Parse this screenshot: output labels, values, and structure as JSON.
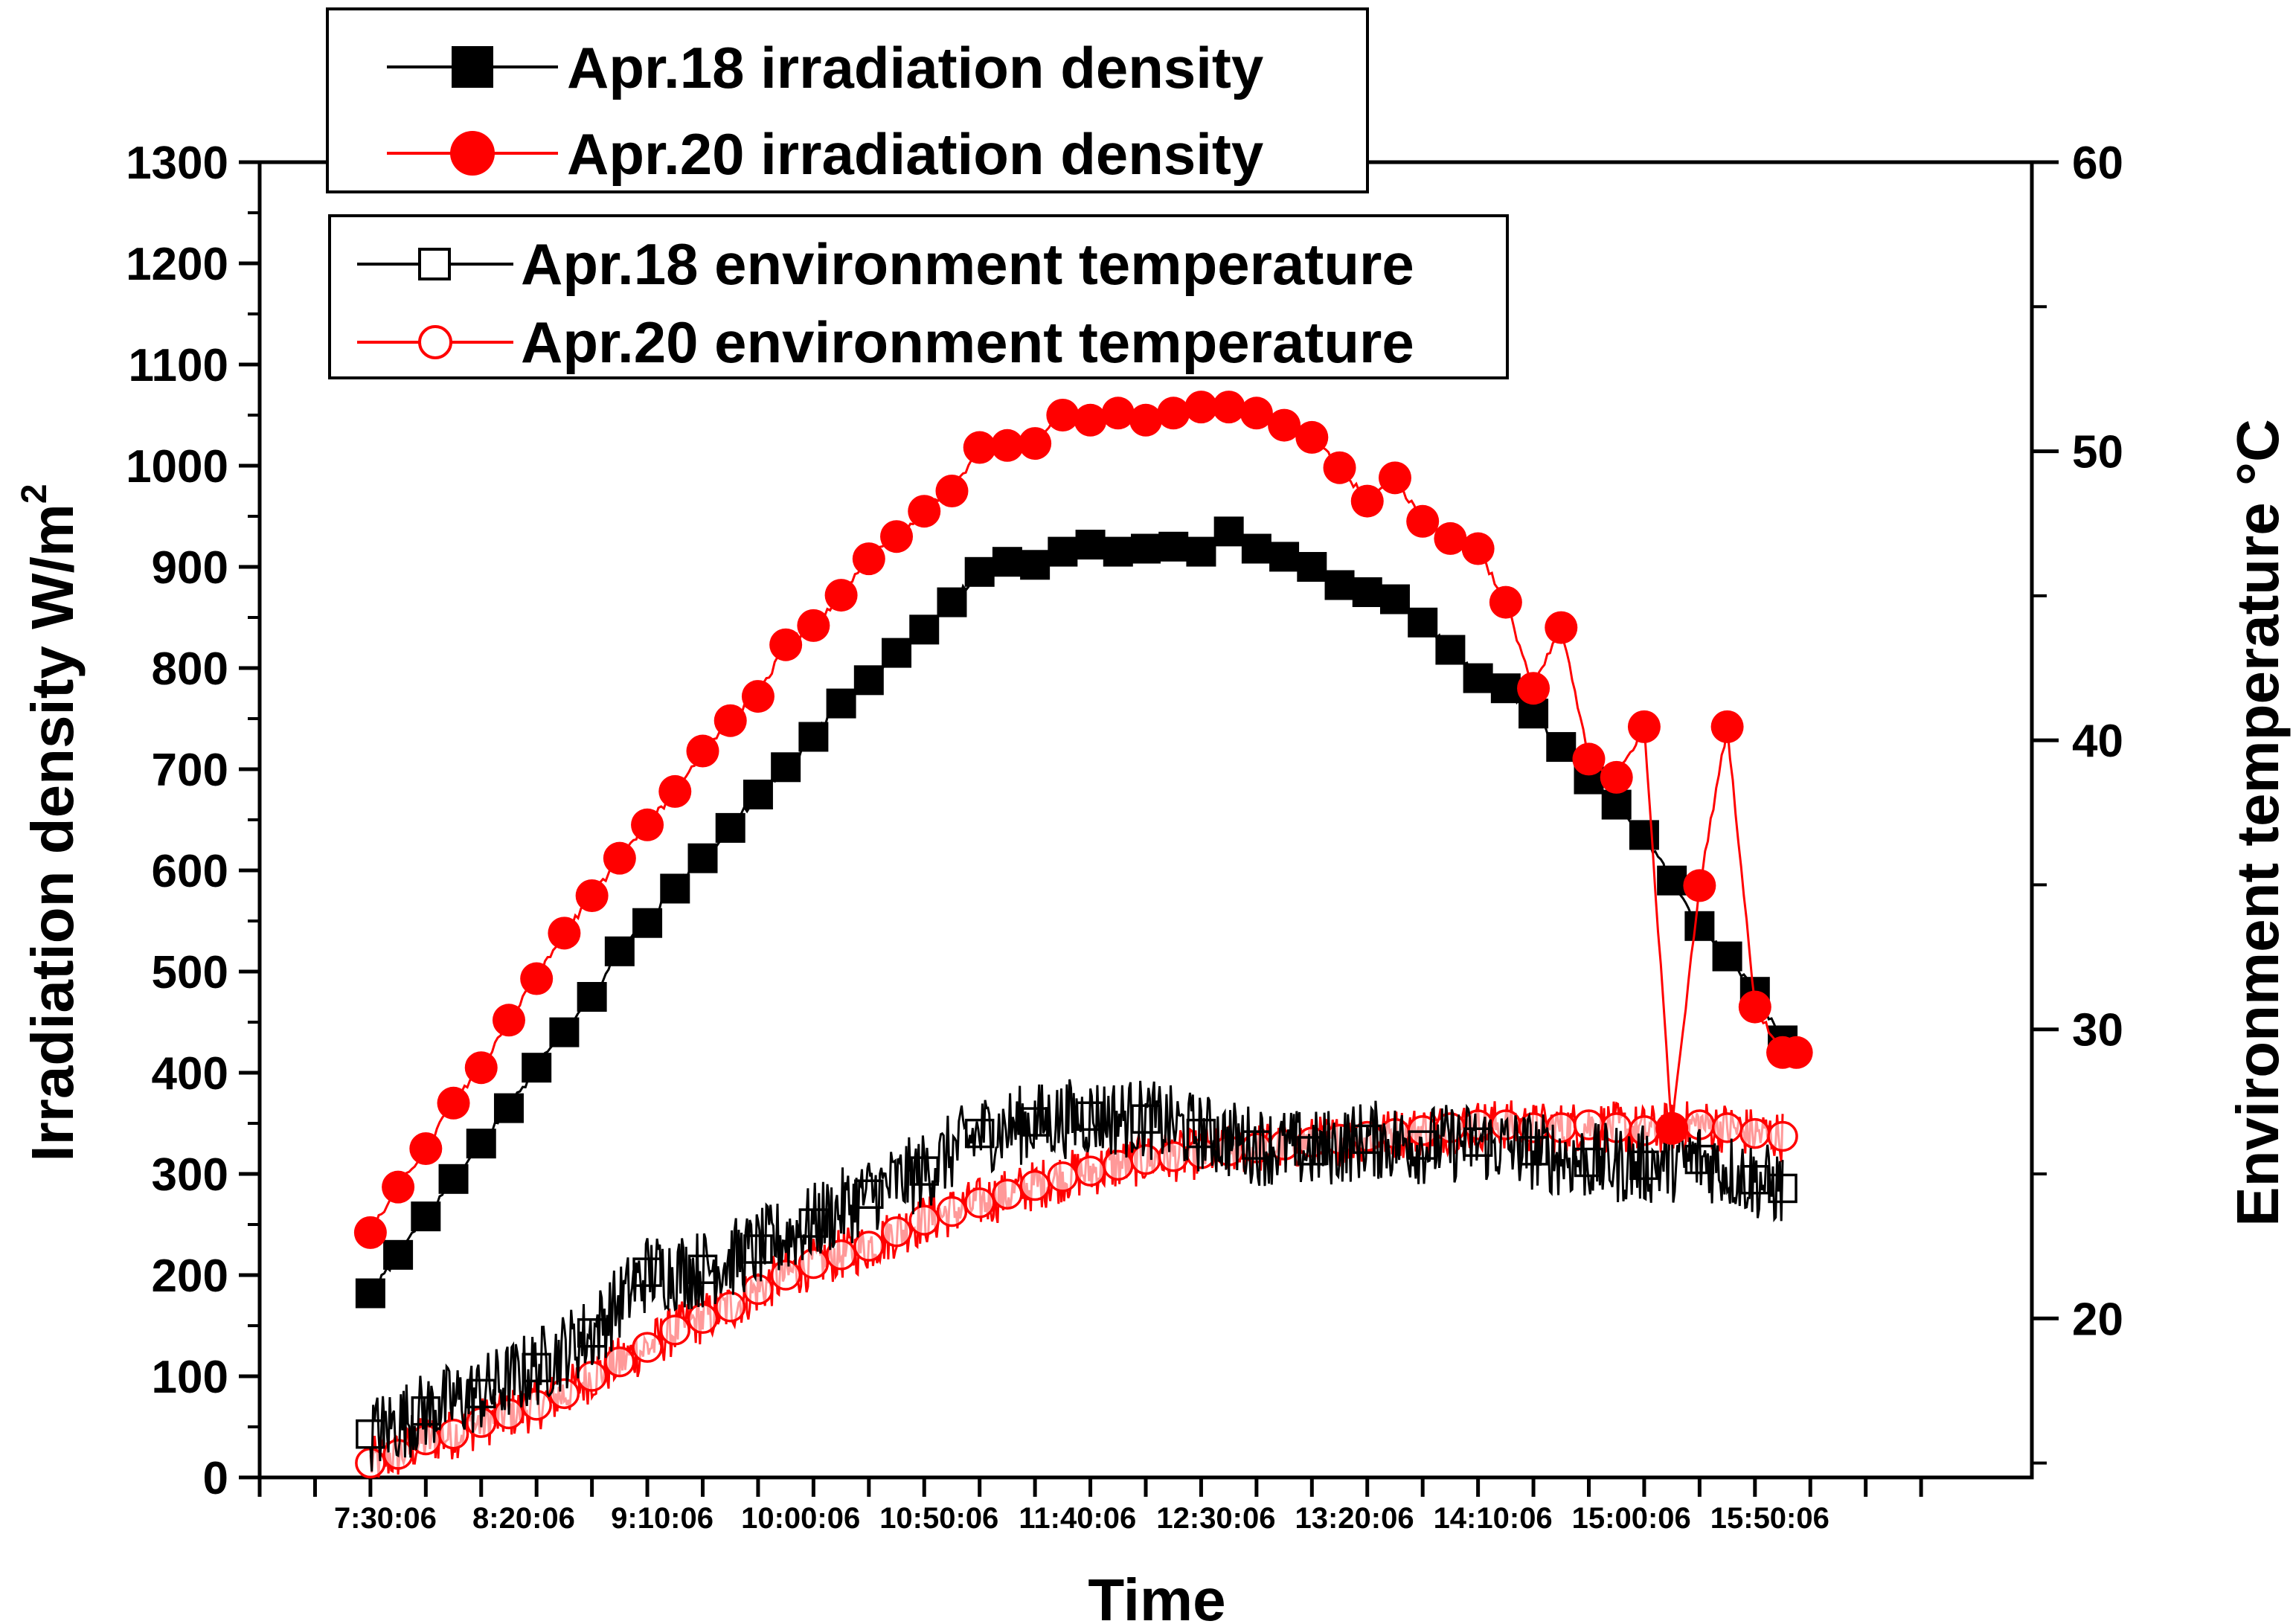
{
  "chart_data": {
    "type": "line",
    "title": "",
    "xlabel": "Time",
    "ylabel_left": "Irradiation density W/m",
    "ylabel_left_superscript": "2",
    "ylabel_right": "Environment temperature °C",
    "x_tick_labels": [
      "7:30:06",
      "8:20:06",
      "9:10:06",
      "10:00:06",
      "10:50:06",
      "11:40:06",
      "12:30:06",
      "13:20:06",
      "14:10:06",
      "15:00:06",
      "15:50:06"
    ],
    "x_range_minutes": [
      -40,
      600
    ],
    "y_left_range": [
      0,
      1300
    ],
    "y_left_ticks": [
      "0",
      "100",
      "200",
      "300",
      "400",
      "500",
      "600",
      "700",
      "800",
      "900",
      "1000",
      "1100",
      "1200",
      "1300"
    ],
    "y_right_range": [
      14.5,
      60
    ],
    "y_right_ticks": [
      "20",
      "30",
      "40",
      "50",
      "60"
    ],
    "legend_irradiation": [
      "Apr.18 irradiation density",
      "Apr.20 irradiation density"
    ],
    "legend_temperature": [
      "Apr.18 environment temperature",
      "Apr.20 environment temperature"
    ],
    "colors": {
      "apr18": "#000000",
      "apr20": "#ff0000"
    },
    "series": [
      {
        "name": "Apr.18 irradiation density",
        "axis": "left",
        "marker": "filled-square",
        "x_minutes": [
          0,
          10,
          20,
          30,
          40,
          50,
          60,
          70,
          80,
          90,
          100,
          110,
          120,
          130,
          140,
          150,
          160,
          170,
          180,
          190,
          200,
          210,
          220,
          230,
          240,
          250,
          260,
          270,
          280,
          290,
          300,
          310,
          320,
          330,
          340,
          350,
          360,
          370,
          380,
          390,
          400,
          410,
          420,
          430,
          440,
          450,
          460,
          470,
          480,
          490,
          500,
          510
        ],
        "values": [
          182,
          220,
          258,
          295,
          330,
          365,
          405,
          440,
          475,
          520,
          548,
          582,
          612,
          642,
          675,
          702,
          732,
          765,
          788,
          815,
          838,
          865,
          895,
          905,
          902,
          915,
          922,
          915,
          918,
          920,
          915,
          935,
          918,
          910,
          900,
          882,
          875,
          868,
          845,
          818,
          790,
          780,
          755,
          722,
          690,
          665,
          635,
          590,
          545,
          515,
          480,
          432
        ]
      },
      {
        "name": "Apr.20 irradiation density",
        "axis": "left",
        "marker": "filled-circle",
        "x_minutes": [
          0,
          10,
          20,
          30,
          40,
          50,
          60,
          70,
          80,
          90,
          100,
          110,
          120,
          130,
          140,
          150,
          160,
          170,
          180,
          190,
          200,
          210,
          220,
          230,
          240,
          250,
          260,
          270,
          280,
          290,
          300,
          310,
          320,
          330,
          340,
          350,
          360,
          370,
          380,
          390,
          400,
          410,
          420,
          430,
          440,
          450,
          460,
          470,
          480,
          490,
          500,
          510,
          515
        ],
        "values": [
          242,
          287,
          325,
          370,
          405,
          452,
          493,
          538,
          575,
          612,
          645,
          678,
          718,
          748,
          772,
          823,
          842,
          872,
          908,
          930,
          955,
          975,
          1018,
          1020,
          1022,
          1050,
          1045,
          1052,
          1045,
          1052,
          1058,
          1058,
          1052,
          1040,
          1028,
          998,
          965,
          988,
          945,
          928,
          918,
          865,
          780,
          840,
          710,
          692,
          742,
          345,
          585,
          742,
          465,
          420,
          420
        ]
      },
      {
        "name": "Apr.18 environment temperature",
        "axis": "right",
        "marker": "open-square",
        "x_minutes": [
          0,
          20,
          40,
          60,
          80,
          100,
          120,
          140,
          160,
          180,
          200,
          220,
          240,
          260,
          280,
          300,
          320,
          340,
          360,
          380,
          400,
          420,
          440,
          460,
          480,
          500,
          510
        ],
        "values": [
          16.0,
          16.8,
          17.4,
          18.3,
          19.5,
          21.6,
          21.7,
          22.4,
          23.3,
          24.3,
          25.1,
          26.4,
          26.8,
          27.0,
          26.9,
          26.4,
          26.0,
          25.8,
          26.2,
          26.0,
          26.1,
          25.8,
          25.4,
          25.3,
          25.5,
          24.8,
          24.5
        ]
      },
      {
        "name": "Apr.20 environment temperature",
        "axis": "right",
        "marker": "open-circle",
        "x_minutes": [
          0,
          10,
          20,
          30,
          40,
          50,
          60,
          70,
          80,
          90,
          100,
          110,
          120,
          130,
          140,
          150,
          160,
          170,
          180,
          190,
          200,
          210,
          220,
          230,
          240,
          250,
          260,
          270,
          280,
          290,
          300,
          310,
          320,
          330,
          340,
          350,
          360,
          370,
          380,
          390,
          400,
          410,
          420,
          430,
          440,
          450,
          460,
          470,
          480,
          490,
          500,
          510
        ],
        "values": [
          15.0,
          15.3,
          15.8,
          16.0,
          16.4,
          16.7,
          17.0,
          17.4,
          18.0,
          18.5,
          19.0,
          19.6,
          20.0,
          20.4,
          21.0,
          21.5,
          21.9,
          22.2,
          22.5,
          23.0,
          23.4,
          23.7,
          24.0,
          24.3,
          24.6,
          24.9,
          25.1,
          25.3,
          25.5,
          25.6,
          25.7,
          25.8,
          25.9,
          26.0,
          26.1,
          26.2,
          26.3,
          26.4,
          26.5,
          26.6,
          26.7,
          26.7,
          26.6,
          26.6,
          26.7,
          26.6,
          26.5,
          26.6,
          26.7,
          26.6,
          26.4,
          26.3
        ]
      }
    ]
  }
}
